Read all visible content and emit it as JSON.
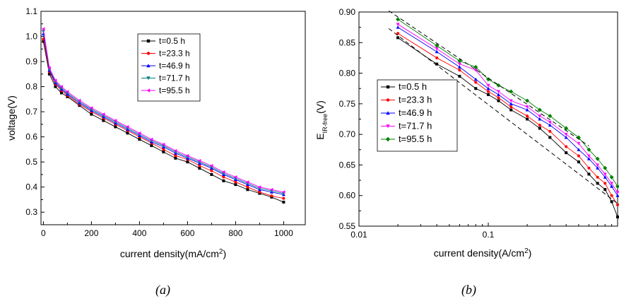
{
  "chart_data": [
    {
      "type": "line",
      "panel": "a",
      "caption": "(a)",
      "xlabel": "current density(mA/cm",
      "xlabel_sup": "2",
      "xlabel_end": ")",
      "ylabel": "voltage(V)",
      "xlim": [
        -10,
        1090
      ],
      "ylim": [
        0.25,
        1.1
      ],
      "xticks": [
        0,
        200,
        400,
        600,
        800,
        1000
      ],
      "yticks": [
        0.3,
        0.4,
        0.5,
        0.6,
        0.7,
        0.8,
        0.9,
        1.0,
        1.1
      ],
      "legend_position": "upper-middle",
      "x": [
        0,
        25,
        50,
        75,
        100,
        150,
        200,
        250,
        300,
        350,
        400,
        450,
        500,
        550,
        600,
        650,
        700,
        750,
        800,
        850,
        900,
        950,
        1000
      ],
      "series": [
        {
          "name": "t=0.5 h",
          "color": "#000000",
          "marker": "square",
          "values": [
            0.98,
            0.85,
            0.8,
            0.775,
            0.76,
            0.725,
            0.69,
            0.665,
            0.64,
            0.615,
            0.59,
            0.565,
            0.54,
            0.515,
            0.5,
            0.475,
            0.45,
            0.425,
            0.41,
            0.39,
            0.375,
            0.36,
            0.34
          ]
        },
        {
          "name": "t=23.3 h",
          "color": "#ff0000",
          "marker": "circle",
          "values": [
            0.99,
            0.86,
            0.81,
            0.785,
            0.765,
            0.73,
            0.7,
            0.675,
            0.65,
            0.625,
            0.6,
            0.575,
            0.55,
            0.525,
            0.51,
            0.485,
            0.465,
            0.44,
            0.42,
            0.4,
            0.38,
            0.365,
            0.355
          ]
        },
        {
          "name": "t=46.9 h",
          "color": "#0000ff",
          "marker": "triangle-up",
          "values": [
            1.01,
            0.865,
            0.815,
            0.79,
            0.77,
            0.735,
            0.705,
            0.68,
            0.655,
            0.63,
            0.605,
            0.58,
            0.56,
            0.535,
            0.515,
            0.495,
            0.475,
            0.45,
            0.43,
            0.41,
            0.39,
            0.38,
            0.37
          ]
        },
        {
          "name": "t=71.7 h",
          "color": "#008080",
          "marker": "triangle-down",
          "values": [
            1.02,
            0.87,
            0.82,
            0.795,
            0.775,
            0.74,
            0.71,
            0.685,
            0.66,
            0.635,
            0.61,
            0.585,
            0.565,
            0.54,
            0.52,
            0.5,
            0.48,
            0.455,
            0.435,
            0.415,
            0.395,
            0.385,
            0.375
          ]
        },
        {
          "name": "t=95.5 h",
          "color": "#ff00ff",
          "marker": "triangle-left",
          "values": [
            1.03,
            0.875,
            0.825,
            0.8,
            0.78,
            0.745,
            0.715,
            0.69,
            0.665,
            0.64,
            0.615,
            0.59,
            0.57,
            0.545,
            0.525,
            0.505,
            0.485,
            0.46,
            0.44,
            0.42,
            0.4,
            0.39,
            0.38
          ]
        }
      ]
    },
    {
      "type": "line",
      "panel": "b",
      "caption": "(b)",
      "xlabel": "current density(A/cm",
      "xlabel_sup": "2",
      "xlabel_end": ")",
      "ylabel": "E",
      "ylabel_sub": "IR-free",
      "ylabel_end": "(V)",
      "xscale": "log",
      "xlim": [
        0.01,
        1.0
      ],
      "ylim": [
        0.55,
        0.9
      ],
      "xticks": [
        0.01,
        0.1
      ],
      "xtick_labels": [
        "0.01",
        "0.1"
      ],
      "yticks": [
        0.55,
        0.6,
        0.65,
        0.7,
        0.75,
        0.8,
        0.85,
        0.9
      ],
      "ytick_labels": [
        "0.55",
        "0.60",
        "0.65",
        "0.70",
        "0.75",
        "0.80",
        "0.85",
        "0.90"
      ],
      "legend_position": "middle-left",
      "x": [
        0.02,
        0.04,
        0.06,
        0.08,
        0.1,
        0.12,
        0.15,
        0.2,
        0.25,
        0.3,
        0.4,
        0.5,
        0.6,
        0.7,
        0.8,
        0.9,
        1.0
      ],
      "series": [
        {
          "name": "t=0.5 h",
          "color": "#000000",
          "marker": "square",
          "values": [
            0.858,
            0.815,
            0.795,
            0.775,
            0.765,
            0.755,
            0.74,
            0.725,
            0.71,
            0.695,
            0.67,
            0.655,
            0.635,
            0.62,
            0.61,
            0.59,
            0.565
          ]
        },
        {
          "name": "t=23.3 h",
          "color": "#ff0000",
          "marker": "circle",
          "values": [
            0.865,
            0.825,
            0.805,
            0.785,
            0.77,
            0.76,
            0.745,
            0.73,
            0.715,
            0.705,
            0.68,
            0.665,
            0.645,
            0.63,
            0.62,
            0.6,
            0.585
          ]
        },
        {
          "name": "t=46.9 h",
          "color": "#0000ff",
          "marker": "triangle-up",
          "values": [
            0.875,
            0.835,
            0.81,
            0.79,
            0.775,
            0.765,
            0.75,
            0.74,
            0.725,
            0.715,
            0.695,
            0.675,
            0.66,
            0.645,
            0.63,
            0.615,
            0.6
          ]
        },
        {
          "name": "t=71.7 h",
          "color": "#ff00ff",
          "marker": "triangle-down",
          "values": [
            0.88,
            0.84,
            0.815,
            0.805,
            0.78,
            0.77,
            0.755,
            0.745,
            0.73,
            0.72,
            0.7,
            0.685,
            0.665,
            0.65,
            0.635,
            0.62,
            0.605
          ]
        },
        {
          "name": "t=95.5 h",
          "color": "#008000",
          "marker": "diamond",
          "values": [
            0.888,
            0.845,
            0.82,
            0.81,
            0.79,
            0.78,
            0.77,
            0.755,
            0.74,
            0.73,
            0.71,
            0.695,
            0.675,
            0.66,
            0.645,
            0.63,
            0.615
          ]
        }
      ],
      "reference_lines": [
        {
          "style": "dashed",
          "color": "#000000",
          "x": [
            0.017,
            1.0
          ],
          "y": [
            0.873,
            0.587
          ]
        },
        {
          "style": "dashed",
          "color": "#000000",
          "x": [
            0.017,
            0.6
          ],
          "y": [
            0.902,
            0.681
          ]
        }
      ]
    }
  ]
}
